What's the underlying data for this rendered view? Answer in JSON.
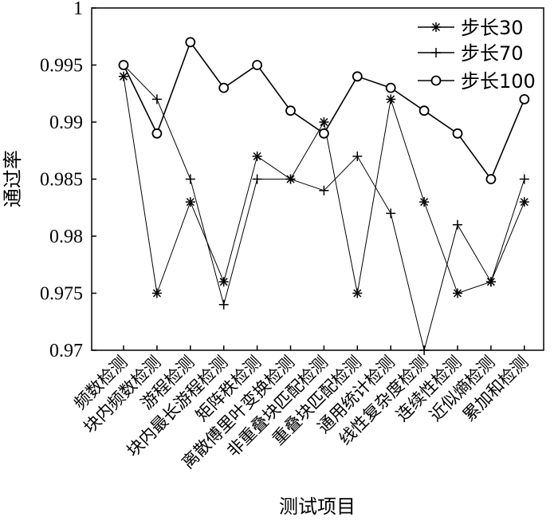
{
  "chart_data": {
    "type": "line",
    "title": "",
    "xlabel": "测试项目",
    "ylabel": "通过率",
    "ylim": [
      0.97,
      1
    ],
    "yticks": [
      "0.97",
      "0.975",
      "0.98",
      "0.985",
      "0.99",
      "0.995",
      "1"
    ],
    "grid": false,
    "legend_position": "top-right",
    "categories": [
      "频数检测",
      "块内频数检测",
      "游程检测",
      "块内最长游程检测",
      "矩阵秩检测",
      "离散傅里叶变换检测",
      "非重叠块匹配检测",
      "重叠块匹配检测",
      "通用统计检测",
      "线性复杂度检测",
      "连续性检测",
      "近似熵检测",
      "累加和检测"
    ],
    "series": [
      {
        "name": "步长30",
        "marker": "asterisk",
        "values": [
          0.994,
          0.975,
          0.983,
          0.976,
          0.987,
          0.985,
          0.99,
          0.975,
          0.992,
          0.983,
          0.975,
          0.976,
          0.983
        ]
      },
      {
        "name": "步长70",
        "marker": "plus",
        "values": [
          0.995,
          0.992,
          0.985,
          0.974,
          0.985,
          0.985,
          0.984,
          0.987,
          0.982,
          0.97,
          0.981,
          0.976,
          0.985
        ]
      },
      {
        "name": "步长100",
        "marker": "circle",
        "values": [
          0.995,
          0.989,
          0.997,
          0.993,
          0.995,
          0.991,
          0.989,
          0.994,
          0.993,
          0.991,
          0.989,
          0.985,
          0.992
        ]
      }
    ]
  }
}
